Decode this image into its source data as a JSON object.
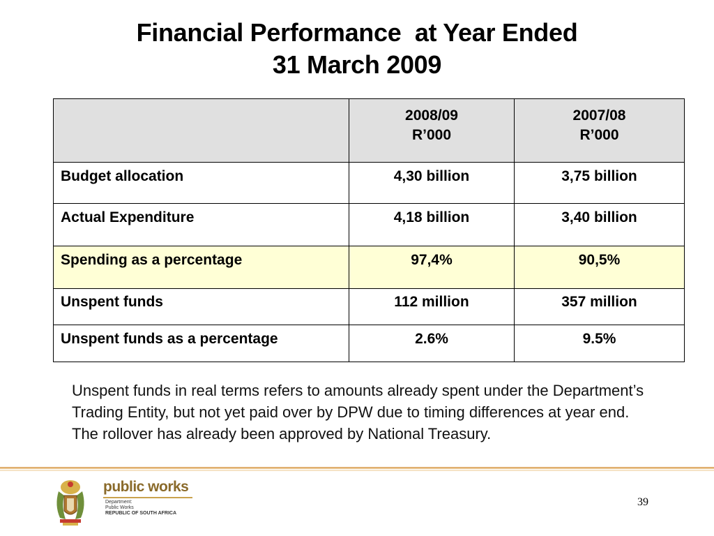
{
  "title": {
    "line1": "Financial Performance  at Year Ended",
    "line2": "31 March 2009"
  },
  "table": {
    "header": {
      "col1": {
        "year": "2008/09",
        "unit": "R’000"
      },
      "col2": {
        "year": "2007/08",
        "unit": "R’000"
      }
    },
    "rows": [
      {
        "label": "Budget allocation",
        "v1": "4,30 billion",
        "v2": "3,75 billion"
      },
      {
        "label": "Actual Expenditure",
        "v1": "4,18 billion",
        "v2": "3,40 billion"
      },
      {
        "label": "Spending as a percentage",
        "v1": "97,4%",
        "v2": "90,5%"
      },
      {
        "label": "Unspent funds",
        "v1": "112 million",
        "v2": "357 million"
      },
      {
        "label": "Unspent funds as a percentage",
        "v1": "2.6%",
        "v2": "9.5%"
      }
    ]
  },
  "note": "Unspent funds in real terms refers to amounts already spent under the Department’s Trading Entity, but not yet paid over by DPW due to timing differences at year end. The rollover has already been approved by National Treasury.",
  "footer": {
    "logo_title": "public works",
    "logo_line1": "Department:",
    "logo_line2": "Public Works",
    "logo_line3": "REPUBLIC OF SOUTH AFRICA",
    "page_number": "39"
  },
  "colors": {
    "header_fill": "#e0e0e0",
    "highlight_row": "#ffffd6",
    "footer_rule": "#d9a15a"
  }
}
